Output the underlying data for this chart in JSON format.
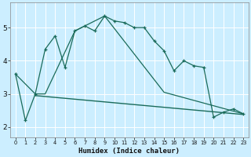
{
  "xlabel": "Humidex (Indice chaleur)",
  "background_color": "#cceeff",
  "grid_color": "#ffffff",
  "line_color": "#1a6b5a",
  "xlim": [
    -0.5,
    23.5
  ],
  "ylim": [
    1.7,
    5.75
  ],
  "xticks": [
    0,
    1,
    2,
    3,
    4,
    5,
    6,
    7,
    8,
    9,
    10,
    11,
    12,
    13,
    14,
    15,
    16,
    17,
    18,
    19,
    20,
    21,
    22,
    23
  ],
  "yticks": [
    2,
    3,
    4,
    5
  ],
  "series1_x": [
    0,
    1,
    2,
    3,
    4,
    5,
    6,
    7,
    8,
    9,
    10,
    11,
    12,
    13,
    14,
    15,
    16,
    17,
    18,
    19,
    20,
    21,
    22,
    23
  ],
  "series1_y": [
    3.6,
    2.2,
    3.0,
    4.35,
    4.75,
    3.8,
    4.9,
    5.05,
    4.9,
    5.35,
    5.2,
    5.15,
    5.0,
    5.0,
    4.6,
    4.3,
    3.7,
    4.0,
    3.85,
    3.8,
    2.3,
    2.45,
    2.55,
    2.4
  ],
  "series2_x": [
    0,
    2,
    3,
    6,
    7,
    9,
    15,
    23
  ],
  "series2_y": [
    3.6,
    3.0,
    3.0,
    4.9,
    5.05,
    5.35,
    3.05,
    2.4
  ],
  "series3_x": [
    2,
    23
  ],
  "series3_y": [
    2.95,
    2.38
  ]
}
